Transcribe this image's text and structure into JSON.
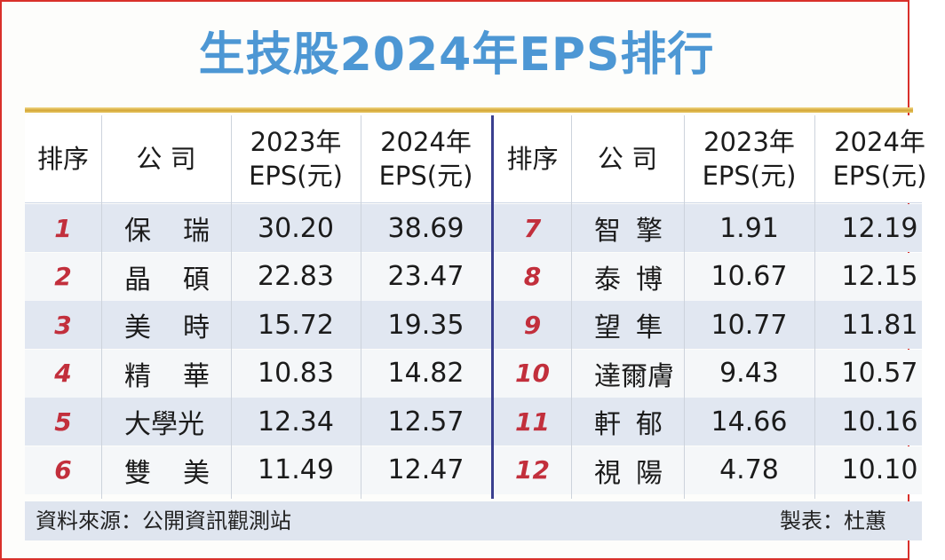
{
  "title": "生技股2024年EPS排行",
  "headers": {
    "rank": "排序",
    "company": "公 司",
    "eps2023_year": "2023年",
    "eps2023_unit": "EPS(元)",
    "eps2024_year": "2024年",
    "eps2024_unit": "EPS(元)"
  },
  "left_rows": [
    {
      "rank": "1",
      "name_a": "保",
      "name_b": "瑞",
      "eps2023": "30.20",
      "eps2024": "38.69"
    },
    {
      "rank": "2",
      "name_a": "晶",
      "name_b": "碩",
      "eps2023": "22.83",
      "eps2024": "23.47"
    },
    {
      "rank": "3",
      "name_a": "美",
      "name_b": "時",
      "eps2023": "15.72",
      "eps2024": "19.35"
    },
    {
      "rank": "4",
      "name_a": "精",
      "name_b": "華",
      "eps2023": "10.83",
      "eps2024": "14.82"
    },
    {
      "rank": "5",
      "name_a": "大學光",
      "name_b": "",
      "eps2023": "12.34",
      "eps2024": "12.57"
    },
    {
      "rank": "6",
      "name_a": "雙",
      "name_b": "美",
      "eps2023": "11.49",
      "eps2024": "12.47"
    }
  ],
  "right_rows": [
    {
      "rank": "7",
      "name_a": "智",
      "name_b": "擎",
      "eps2023": "1.91",
      "eps2024": "12.19"
    },
    {
      "rank": "8",
      "name_a": "泰",
      "name_b": "博",
      "eps2023": "10.67",
      "eps2024": "12.15"
    },
    {
      "rank": "9",
      "name_a": "望",
      "name_b": "隼",
      "eps2023": "10.77",
      "eps2024": "11.81"
    },
    {
      "rank": "10",
      "name_a": "達爾膚",
      "name_b": "",
      "eps2023": "9.43",
      "eps2024": "10.57"
    },
    {
      "rank": "11",
      "name_a": "軒",
      "name_b": "郁",
      "eps2023": "14.66",
      "eps2024": "10.16"
    },
    {
      "rank": "12",
      "name_a": "視",
      "name_b": "陽",
      "eps2023": "4.78",
      "eps2024": "10.10"
    }
  ],
  "footer": {
    "source": "資料來源：公開資訊觀測站",
    "maker": "製表：杜蕙"
  },
  "colors": {
    "title": "#4d97d4",
    "rank": "#c22f3c",
    "divider": "#3a3f8f",
    "border": "#d9302a"
  }
}
